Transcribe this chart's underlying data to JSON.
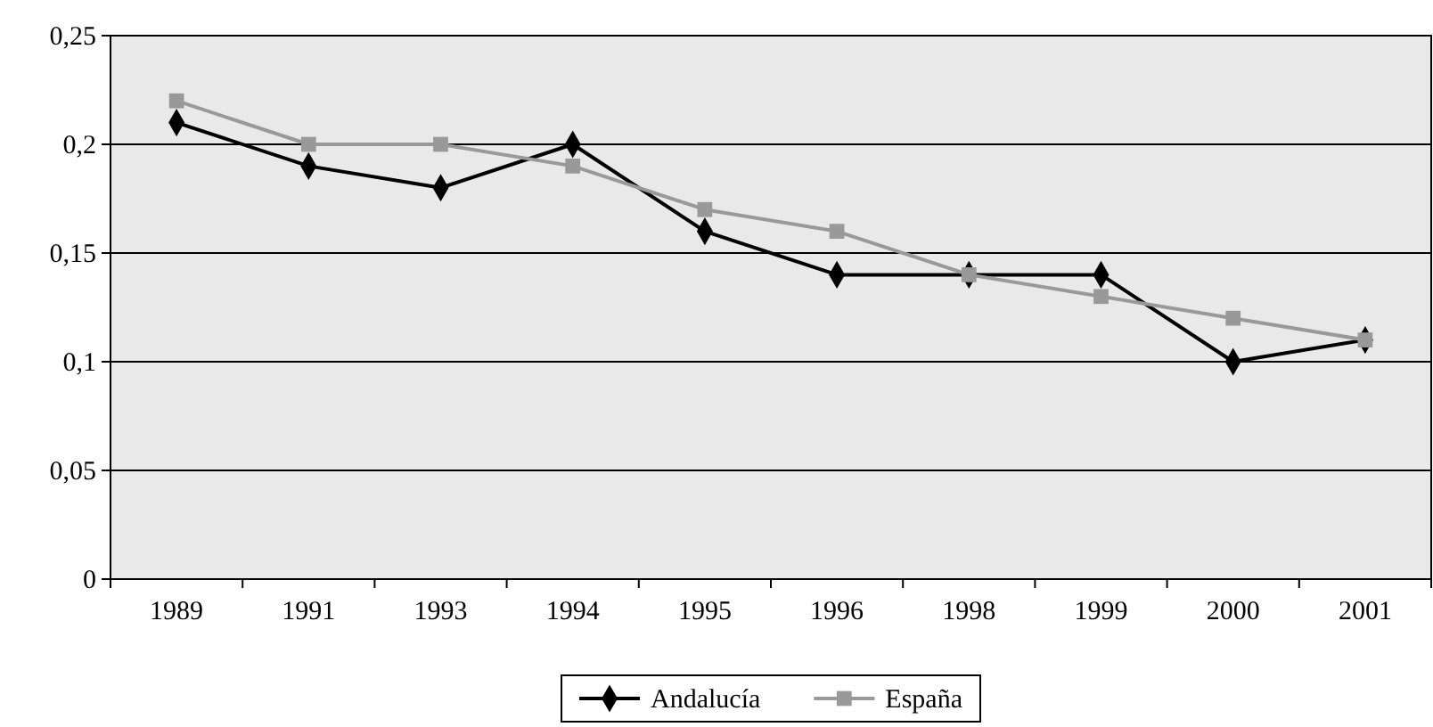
{
  "chart_data": {
    "type": "line",
    "categories": [
      "1989",
      "1991",
      "1993",
      "1994",
      "1995",
      "1996",
      "1998",
      "1999",
      "2000",
      "2001"
    ],
    "series": [
      {
        "name": "Andalucía",
        "color": "#000000",
        "marker": "diamond",
        "values": [
          0.21,
          0.19,
          0.18,
          0.2,
          0.16,
          0.14,
          0.14,
          0.14,
          0.1,
          0.11
        ]
      },
      {
        "name": "España",
        "color": "#999999",
        "marker": "square",
        "values": [
          0.22,
          0.2,
          0.2,
          0.19,
          0.17,
          0.16,
          0.14,
          0.13,
          0.12,
          0.11
        ]
      }
    ],
    "ylim": [
      0,
      0.25
    ],
    "yticks": [
      0,
      {
        "value": 0.05,
        "label": "0,05"
      },
      {
        "value": 0.1,
        "label": "0,1"
      },
      {
        "value": 0.15,
        "label": "0,15"
      },
      {
        "value": 0.2,
        "label": "0,2"
      },
      {
        "value": 0.25,
        "label": "0,25"
      }
    ],
    "grid": "y",
    "legend": "bottom",
    "line_style": "solid"
  }
}
